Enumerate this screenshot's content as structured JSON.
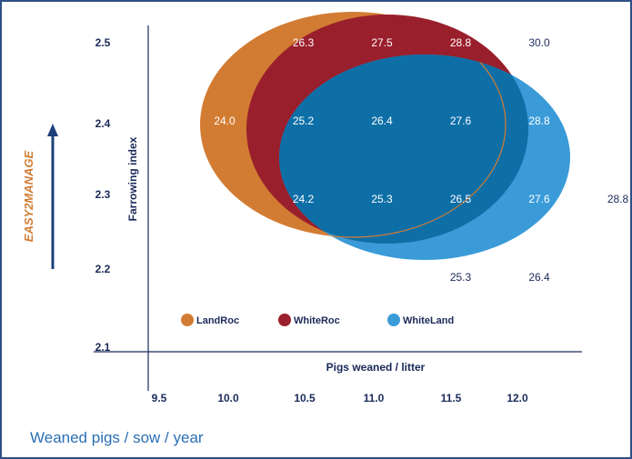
{
  "colors": {
    "frame": "#2e4f86",
    "axis": "#1a2a5a",
    "landroc": "#d27c33",
    "whiteroc": "#9a1f2c",
    "whiteland": "#3a9bd8",
    "overlap": "#0e6fa7",
    "label_light": "#ffffff",
    "label_dark": "#1a2a5a",
    "easy2manage": "#d27c33",
    "arrow": "#1d3f7a"
  },
  "side_label": "EASY2MANAGE",
  "caption": "Weaned pigs / sow / year",
  "chart_data": {
    "type": "bubble-region",
    "xlabel": "Pigs weaned / litter",
    "ylabel": "Farrowing index",
    "xlim": [
      9.5,
      12.0
    ],
    "ylim": [
      2.1,
      2.5
    ],
    "x_ticks": [
      "9.5",
      "10.0",
      "10.5",
      "11.0",
      "11.5",
      "12.0"
    ],
    "y_ticks": [
      "2.5",
      "2.4",
      "2.3",
      "2.2",
      "2.1"
    ],
    "series": [
      {
        "name": "LandRoc",
        "color": "#d27c33"
      },
      {
        "name": "WhiteRoc",
        "color": "#9a1f2c"
      },
      {
        "name": "WhiteLand",
        "color": "#3a9bd8"
      }
    ],
    "legend_placement": "bottom-left",
    "grid_values": [
      {
        "x": 10.5,
        "y": 2.5,
        "label": "26.3"
      },
      {
        "x": 11.0,
        "y": 2.5,
        "label": "27.5"
      },
      {
        "x": 11.5,
        "y": 2.5,
        "label": "28.8"
      },
      {
        "x": 12.0,
        "y": 2.5,
        "label": "30.0"
      },
      {
        "x": 10.0,
        "y": 2.4,
        "label": "24.0"
      },
      {
        "x": 10.5,
        "y": 2.4,
        "label": "25.2"
      },
      {
        "x": 11.0,
        "y": 2.4,
        "label": "26.4"
      },
      {
        "x": 11.5,
        "y": 2.4,
        "label": "27.6"
      },
      {
        "x": 12.0,
        "y": 2.4,
        "label": "28.8"
      },
      {
        "x": 10.5,
        "y": 2.3,
        "label": "24.2"
      },
      {
        "x": 11.0,
        "y": 2.3,
        "label": "25.3"
      },
      {
        "x": 11.5,
        "y": 2.3,
        "label": "26.5"
      },
      {
        "x": 12.0,
        "y": 2.3,
        "label": "27.6"
      },
      {
        "x": 12.5,
        "y": 2.3,
        "label": "28.8"
      },
      {
        "x": 11.5,
        "y": 2.2,
        "label": "25.3"
      },
      {
        "x": 12.0,
        "y": 2.2,
        "label": "26.4"
      }
    ]
  }
}
